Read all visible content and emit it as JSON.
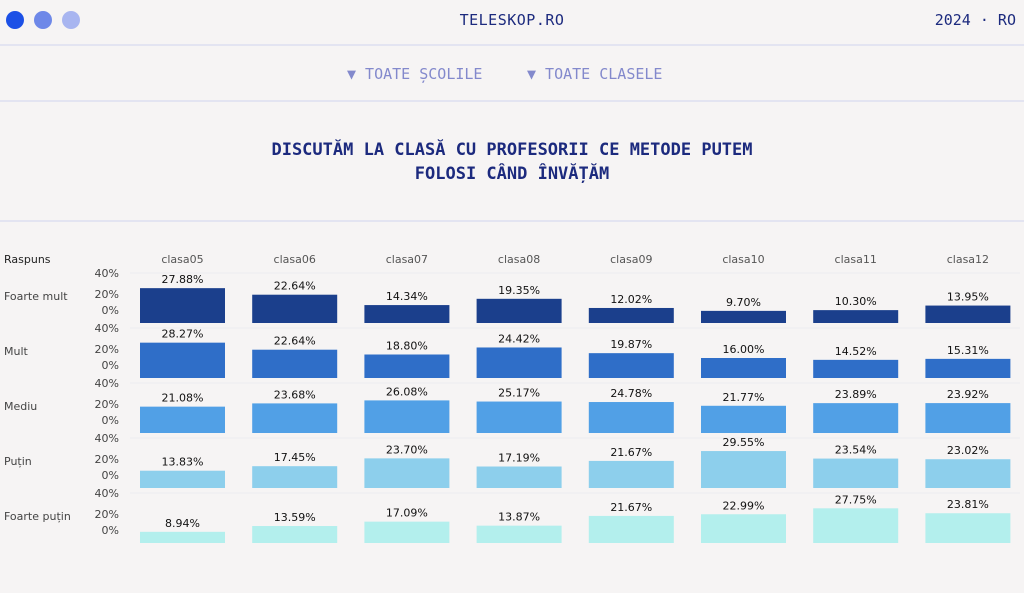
{
  "header": {
    "brand": "TELESKOP.RO",
    "year_lang": "2024 · RO",
    "window_dots": [
      "#1c50e6",
      "#6e88e8",
      "#a8b5f0"
    ]
  },
  "filters": [
    {
      "label": "▼ TOATE ȘCOLILE"
    },
    {
      "label": "▼ TOATE CLASELE"
    }
  ],
  "title_lines": [
    "DISCUTĂM LA CLASĂ CU PROFESORII CE METODE PUTEM",
    "FOLOSI CÂND ÎNVĂȚĂM"
  ],
  "chart_data": {
    "type": "bar",
    "layout": "small-multiples",
    "row_header": "Raspuns",
    "categories": [
      "clasa05",
      "clasa06",
      "clasa07",
      "clasa08",
      "clasa09",
      "clasa10",
      "clasa11",
      "clasa12"
    ],
    "y_ticks": [
      "40%",
      "20%",
      "0%"
    ],
    "ylim": [
      0,
      40
    ],
    "series": [
      {
        "name": "Foarte mult",
        "color": "#1b3f8c",
        "values": [
          27.88,
          22.64,
          14.34,
          19.35,
          12.02,
          9.7,
          10.3,
          13.95
        ]
      },
      {
        "name": "Mult",
        "color": "#2f6ec8",
        "values": [
          28.27,
          22.64,
          18.8,
          24.42,
          19.87,
          16.0,
          14.52,
          15.31
        ]
      },
      {
        "name": "Mediu",
        "color": "#51a0e6",
        "values": [
          21.08,
          23.68,
          26.08,
          25.17,
          24.78,
          21.77,
          23.89,
          23.92
        ]
      },
      {
        "name": "Puțin",
        "color": "#8dcfec",
        "values": [
          13.83,
          17.45,
          23.7,
          17.19,
          21.67,
          29.55,
          23.54,
          23.02
        ]
      },
      {
        "name": "Foarte puțin",
        "color": "#b3efed",
        "values": [
          8.94,
          13.59,
          17.09,
          13.87,
          21.67,
          22.99,
          27.75,
          23.81
        ]
      }
    ]
  }
}
